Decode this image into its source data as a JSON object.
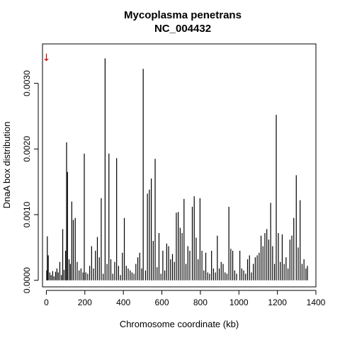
{
  "chart_data": {
    "type": "bar",
    "title": "Mycoplasma penetrans",
    "subtitle": "NC_004432",
    "xlabel": "Chromosome coordinate (kb)",
    "ylabel": "DnaA box distribution",
    "xlim": [
      -20,
      1400
    ],
    "ylim": [
      -0.0001,
      0.0036
    ],
    "x_ticks": [
      0,
      200,
      400,
      600,
      800,
      1000,
      1200,
      1400
    ],
    "x_tick_labels": [
      "0",
      "200",
      "400",
      "600",
      "800",
      "1000",
      "1200",
      "1400"
    ],
    "y_ticks": [
      0,
      0.001,
      0.002,
      0.003
    ],
    "y_tick_labels": [
      "0.0000",
      "0.0010",
      "0.0020",
      "0.0030"
    ],
    "grid": false,
    "bar_color": "#000000",
    "origin_marker": {
      "x": 0,
      "color": "#cc0000",
      "glyph": "↓"
    },
    "x": [
      2,
      5,
      10,
      18,
      25,
      33,
      40,
      48,
      55,
      62,
      70,
      78,
      85,
      92,
      100,
      105,
      110,
      118,
      125,
      132,
      140,
      150,
      160,
      170,
      180,
      190,
      197,
      205,
      215,
      225,
      235,
      245,
      255,
      265,
      275,
      285,
      295,
      305,
      315,
      325,
      335,
      345,
      355,
      365,
      375,
      385,
      395,
      405,
      415,
      425,
      435,
      445,
      455,
      465,
      475,
      485,
      495,
      503,
      515,
      525,
      535,
      545,
      555,
      565,
      575,
      585,
      595,
      605,
      615,
      625,
      635,
      645,
      655,
      665,
      675,
      685,
      695,
      705,
      715,
      725,
      735,
      745,
      758,
      768,
      778,
      788,
      798,
      808,
      818,
      828,
      838,
      848,
      858,
      868,
      878,
      888,
      898,
      908,
      918,
      928,
      938,
      948,
      958,
      968,
      978,
      988,
      1005,
      1015,
      1025,
      1035,
      1045,
      1055,
      1065,
      1075,
      1085,
      1095,
      1105,
      1115,
      1125,
      1135,
      1145,
      1155,
      1165,
      1175,
      1185,
      1194,
      1205,
      1215,
      1225,
      1235,
      1245,
      1255,
      1265,
      1275,
      1285,
      1298,
      1308,
      1318,
      1328,
      1338,
      1348,
      1356
    ],
    "values": [
      0.00015,
      0.00067,
      0.00038,
      0.00012,
      8e-05,
      0.00014,
      6e-05,
      0.00013,
      0.00018,
      0.00012,
      0.00028,
      8e-05,
      0.00078,
      0.00016,
      0.00045,
      0.0021,
      0.00165,
      0.00032,
      0.00025,
      0.0012,
      0.00092,
      0.00095,
      0.00028,
      0.00015,
      0.00018,
      0.00012,
      0.00193,
      0.00012,
      0.0001,
      0.00022,
      0.00052,
      0.00018,
      0.00045,
      0.00066,
      0.00035,
      0.00125,
      0.0001,
      0.00338,
      0.00025,
      0.00193,
      0.00032,
      0.0001,
      0.00028,
      0.00186,
      0.00022,
      8e-05,
      0.00042,
      0.00095,
      0.00022,
      0.00018,
      0.00015,
      0.00012,
      0.0001,
      0.00025,
      0.00035,
      0.00042,
      0.00018,
      0.00322,
      0.00015,
      0.00132,
      0.00138,
      0.00155,
      0.0006,
      0.00185,
      0.0002,
      0.00072,
      0.0001,
      0.00045,
      0.00015,
      0.00056,
      0.00052,
      0.00032,
      0.0004,
      0.00028,
      0.00103,
      0.00104,
      0.0008,
      0.00072,
      0.00124,
      0.00025,
      0.00052,
      0.00045,
      0.00112,
      0.00128,
      0.00065,
      0.00032,
      0.00125,
      0.00045,
      0.00015,
      0.00042,
      0.00012,
      0.0001,
      0.00045,
      0.00018,
      0.00012,
      0.00068,
      0.00018,
      0.00028,
      0.00025,
      0.00012,
      0.0001,
      0.00112,
      0.00048,
      0.00045,
      0.00015,
      0.0001,
      0.00045,
      0.00018,
      0.00015,
      0.0001,
      0.00032,
      0.00038,
      0.00012,
      0.00025,
      0.00035,
      0.00038,
      0.00042,
      0.00068,
      0.00052,
      0.00072,
      0.00078,
      0.00062,
      0.00118,
      0.00052,
      0.00025,
      0.00252,
      0.00072,
      0.00028,
      0.0007,
      0.00025,
      0.00035,
      0.00018,
      0.00062,
      0.00068,
      0.00095,
      0.0016,
      0.0005,
      0.00122,
      0.00025,
      0.00032,
      0.00018,
      0.00022
    ]
  }
}
